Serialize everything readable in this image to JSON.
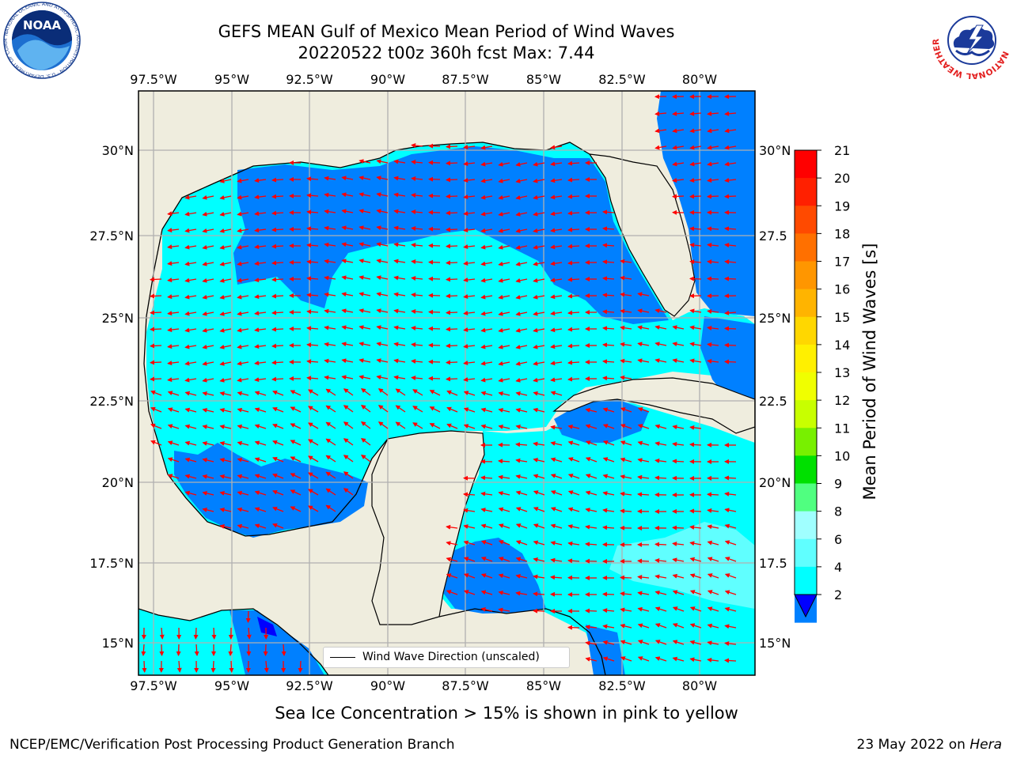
{
  "header": {
    "title_line1": "GEFS MEAN Gulf of Mexico Mean Period of Wind Waves",
    "title_line2": "20220522 t00z 360h fcst   Max: 7.44"
  },
  "logos": {
    "left": "NOAA",
    "left_ring_text": "NATIONAL OCEANIC AND ATMOSPHERIC ADMINISTRATION · U.S. DEPARTMENT OF COMMERCE",
    "right_ring_text": "NATIONAL WEATHER SERVICE"
  },
  "map": {
    "lon_labels": [
      "97.5°W",
      "95°W",
      "92.5°W",
      "90°W",
      "87.5°W",
      "85°W",
      "82.5°W",
      "80°W"
    ],
    "lat_labels_left": [
      "30°N",
      "27.5°N",
      "25°N",
      "22.5°N",
      "20°N",
      "17.5°N",
      "15°N"
    ],
    "lat_labels_right": [
      "30°N",
      "27.5",
      "25°N",
      "22.5",
      "20°N",
      "17.5",
      "15°N"
    ],
    "legend_label": "Wind Wave Direction (unscaled)",
    "colors": {
      "land": "#efedde",
      "ocean_2_4": "#0080ff",
      "ocean_4_6": "#00ffff",
      "ocean_6_8": "#60ffff",
      "ocean_below_2": "#0000ff",
      "arrows": "#ff0000",
      "grid": "#b0b0b0"
    }
  },
  "colorbar": {
    "title": "Mean Period of Wind Waves [s]",
    "ticks": [
      "21",
      "20",
      "19",
      "18",
      "17",
      "16",
      "15",
      "14",
      "13",
      "12",
      "11",
      "10",
      "9",
      "8",
      "6",
      "4",
      "2"
    ],
    "colors": [
      "#ff0000",
      "#ff2000",
      "#ff4a00",
      "#ff7000",
      "#ff9600",
      "#ffb400",
      "#ffd700",
      "#fff000",
      "#f0ff00",
      "#c8ff00",
      "#78f000",
      "#00e000",
      "#50ff80",
      "#a0ffff",
      "#60ffff",
      "#00ffff",
      "#0080ff"
    ],
    "extend_color": "#0000ff"
  },
  "subtitle": "Sea Ice Concentration > 15% is shown in pink to yellow",
  "footer": {
    "left": "NCEP/EMC/Verification Post Processing Product Generation Branch",
    "right_date": "23 May 2022 on ",
    "right_host": "Hera"
  }
}
